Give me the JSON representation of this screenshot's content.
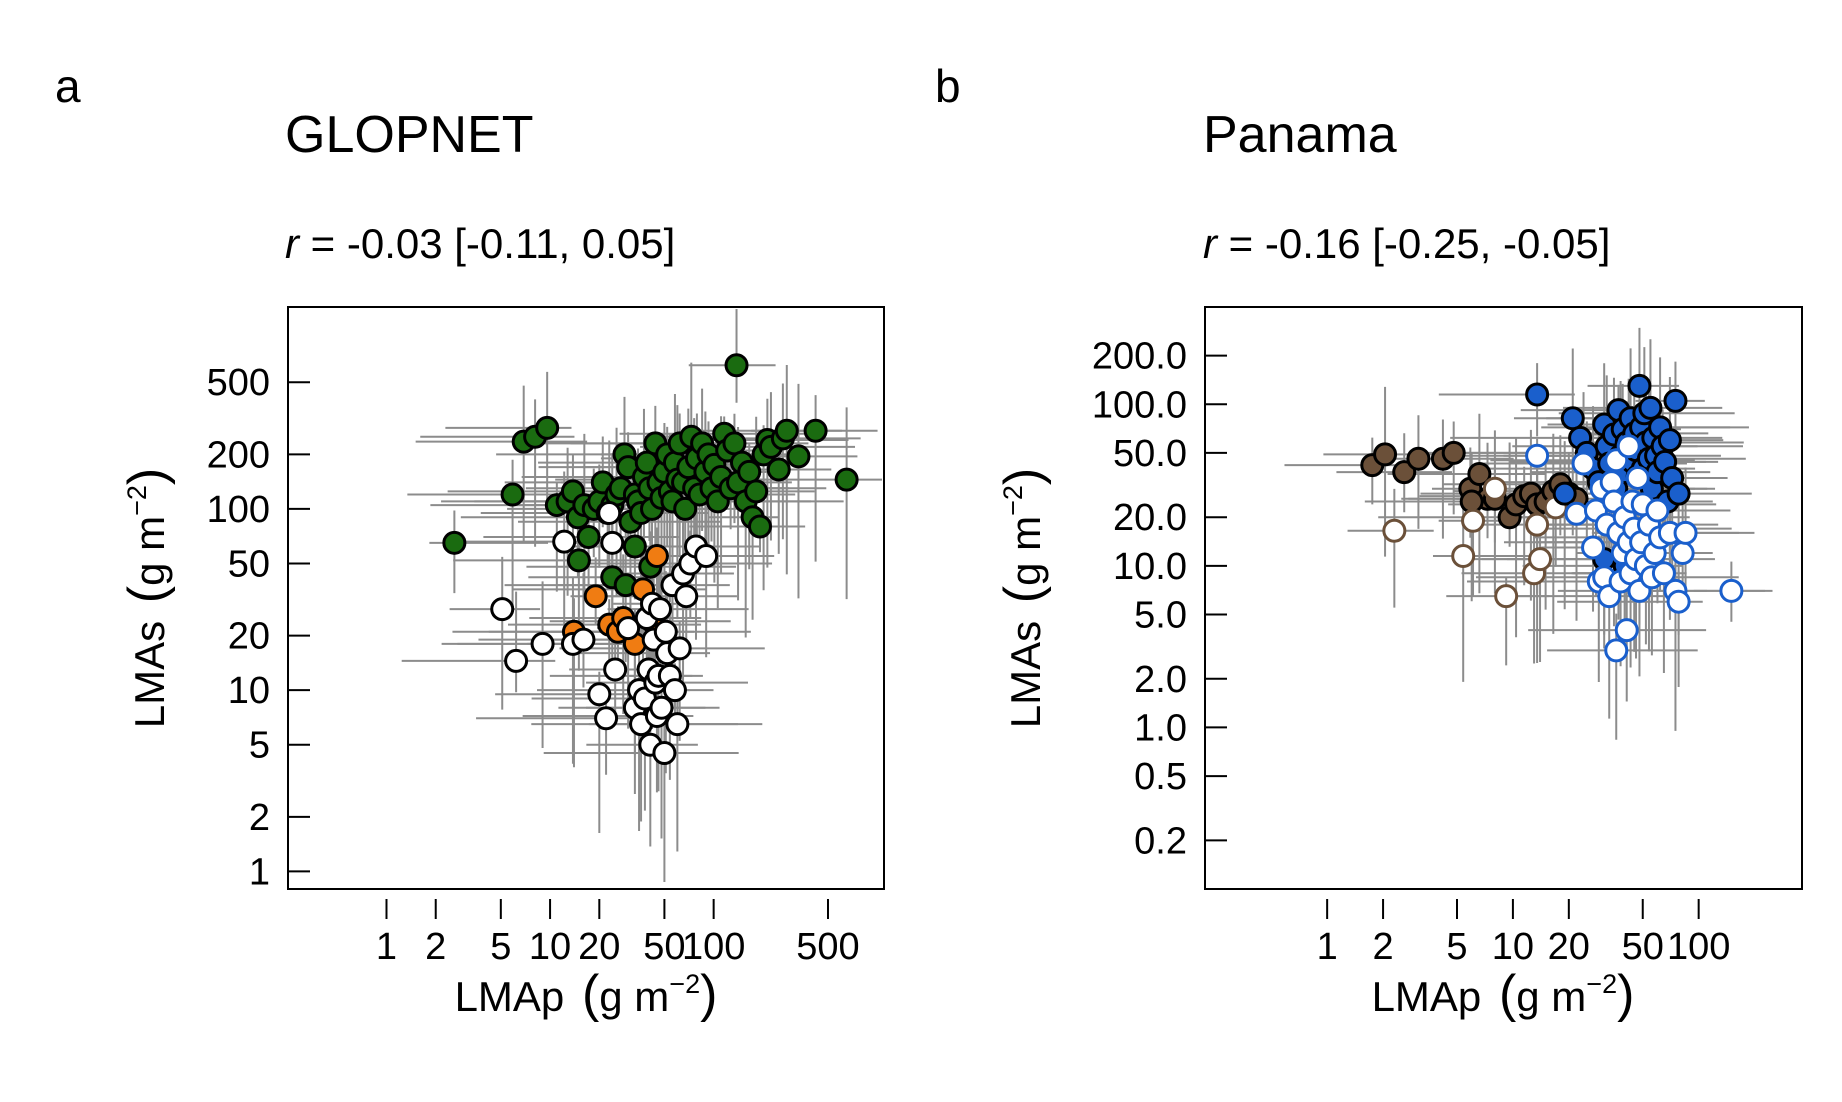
{
  "chart_data": [
    {
      "type": "scatter",
      "panel_label": "a",
      "title": "GLOPNET",
      "subtitle_r": "r",
      "subtitle_rest": " = -0.03 [-0.11, 0.05]",
      "xlabel_main": "LMAp",
      "xlabel_unit": "g m",
      "xlabel_exp": "−2",
      "ylabel_main": "LMAs",
      "ylabel_unit": "g m",
      "ylabel_exp": "−2",
      "x_scale": "log",
      "y_scale": "log",
      "xlim": [
        0.25,
        1100
      ],
      "ylim": [
        0.8,
        1300
      ],
      "x_ticks": [
        1,
        2,
        5,
        10,
        20,
        50,
        100,
        500
      ],
      "x_tick_labels": [
        "1",
        "2",
        "5",
        "10",
        "20",
        "50",
        "100",
        "500"
      ],
      "y_ticks": [
        1,
        2,
        5,
        10,
        20,
        50,
        100,
        200,
        500
      ],
      "y_tick_labels": [
        "1",
        "2",
        "5",
        "10",
        "20",
        "50",
        "100",
        "200",
        "500"
      ],
      "grid": false,
      "legend": "none",
      "error_bar_color": "#8c8c8c",
      "series": [
        {
          "fill": "#1a6b10",
          "stroke": "#000000",
          "points": [
            [
              2.6,
              65
            ],
            [
              5.9,
              120
            ],
            [
              6.9,
              235
            ],
            [
              8.1,
              250
            ],
            [
              9.6,
              280
            ],
            [
              11,
              105
            ],
            [
              12.8,
              110
            ],
            [
              13.8,
              125
            ],
            [
              14.8,
              90
            ],
            [
              16.2,
              105
            ],
            [
              17.2,
              70
            ],
            [
              18.5,
              100
            ],
            [
              20,
              110
            ],
            [
              21,
              140
            ],
            [
              22.5,
              95
            ],
            [
              24,
              105
            ],
            [
              25.5,
              120
            ],
            [
              27,
              130
            ],
            [
              28.5,
              200
            ],
            [
              30,
              170
            ],
            [
              31,
              85
            ],
            [
              33,
              120
            ],
            [
              34.5,
              110
            ],
            [
              36,
              95
            ],
            [
              37.5,
              150
            ],
            [
              39,
              180
            ],
            [
              40.5,
              130
            ],
            [
              42,
              100
            ],
            [
              44,
              230
            ],
            [
              46,
              140
            ],
            [
              48,
              115
            ],
            [
              50,
              160
            ],
            [
              52,
              200
            ],
            [
              54,
              125
            ],
            [
              56,
              110
            ],
            [
              58,
              180
            ],
            [
              60,
              145
            ],
            [
              62,
              230
            ],
            [
              65,
              140
            ],
            [
              67,
              100
            ],
            [
              70,
              170
            ],
            [
              73,
              250
            ],
            [
              76,
              130
            ],
            [
              79,
              190
            ],
            [
              82,
              120
            ],
            [
              85,
              230
            ],
            [
              89,
              160
            ],
            [
              93,
              200
            ],
            [
              97,
              130
            ],
            [
              101,
              175
            ],
            [
              106,
              110
            ],
            [
              111,
              150
            ],
            [
              116,
              260
            ],
            [
              121,
              210
            ],
            [
              127,
              130
            ],
            [
              134,
              230
            ],
            [
              141,
              140
            ],
            [
              149,
              180
            ],
            [
              157,
              110
            ],
            [
              165,
              160
            ],
            [
              173,
              90
            ],
            [
              182,
              125
            ],
            [
              192,
              80
            ],
            [
              202,
              200
            ],
            [
              213,
              240
            ],
            [
              224,
              220
            ],
            [
              250,
              165
            ],
            [
              265,
              245
            ],
            [
              280,
              270
            ],
            [
              330,
              195
            ],
            [
              420,
              270
            ],
            [
              650,
              145
            ],
            [
              138,
              620
            ],
            [
              15,
              52
            ],
            [
              24,
              42
            ],
            [
              29,
              38
            ],
            [
              33,
              62
            ],
            [
              41,
              48
            ]
          ]
        },
        {
          "fill": "#f07c12",
          "stroke": "#000000",
          "points": [
            [
              14,
              21
            ],
            [
              19,
              33
            ],
            [
              23,
              23
            ],
            [
              26,
              21
            ],
            [
              28,
              25
            ],
            [
              33,
              18
            ],
            [
              37,
              36
            ],
            [
              42,
              24
            ],
            [
              45,
              55
            ]
          ]
        },
        {
          "fill": "#ffffff",
          "stroke": "#000000",
          "points": [
            [
              5.1,
              28
            ],
            [
              6.2,
              14.5
            ],
            [
              9,
              18
            ],
            [
              12.2,
              66
            ],
            [
              13.8,
              18
            ],
            [
              16,
              19
            ],
            [
              20,
              9.5
            ],
            [
              22,
              7
            ],
            [
              23,
              95
            ],
            [
              24,
              65
            ],
            [
              25,
              13
            ],
            [
              30,
              22
            ],
            [
              33,
              8
            ],
            [
              35,
              10
            ],
            [
              36,
              6.5
            ],
            [
              38,
              9
            ],
            [
              39,
              25
            ],
            [
              40,
              13
            ],
            [
              41,
              5
            ],
            [
              42,
              30
            ],
            [
              43,
              19
            ],
            [
              44,
              11
            ],
            [
              45,
              7.2
            ],
            [
              46,
              12
            ],
            [
              47,
              28
            ],
            [
              48,
              8
            ],
            [
              50,
              4.5
            ],
            [
              51,
              21
            ],
            [
              52,
              16
            ],
            [
              54,
              12
            ],
            [
              56,
              38
            ],
            [
              58,
              10
            ],
            [
              60,
              6.5
            ],
            [
              62,
              17
            ],
            [
              65,
              44
            ],
            [
              68,
              33
            ],
            [
              72,
              50
            ],
            [
              78,
              62
            ],
            [
              90,
              55
            ]
          ]
        }
      ]
    },
    {
      "type": "scatter",
      "panel_label": "b",
      "title": "Panama",
      "subtitle_r": "r",
      "subtitle_rest": " = -0.16 [-0.25, -0.05]",
      "xlabel_main": "LMAp",
      "xlabel_unit": "g m",
      "xlabel_exp": "−2",
      "ylabel_main": "LMAs",
      "ylabel_unit": "g m",
      "ylabel_exp": "−2",
      "x_scale": "log",
      "y_scale": "log",
      "xlim": [
        0.22,
        360
      ],
      "ylim": [
        0.1,
        400
      ],
      "x_ticks": [
        1,
        2,
        5,
        10,
        20,
        50,
        100
      ],
      "x_tick_labels": [
        "1",
        "2",
        "5",
        "10",
        "20",
        "50",
        "100"
      ],
      "y_ticks": [
        0.2,
        0.5,
        1,
        2,
        5,
        10,
        20,
        50,
        100,
        200
      ],
      "y_tick_labels": [
        "0.2",
        "0.5",
        "1.0",
        "2.0",
        "5.0",
        "10.0",
        "20.0",
        "50.0",
        "100.0",
        "200.0"
      ],
      "grid": false,
      "legend": "none",
      "error_bar_color": "#8c8c8c",
      "series": [
        {
          "fill": "#6b5039",
          "stroke": "#000000",
          "points": [
            [
              1.75,
              42
            ],
            [
              2.05,
              49
            ],
            [
              2.6,
              38
            ],
            [
              3.1,
              46
            ],
            [
              4.2,
              46
            ],
            [
              4.8,
              50
            ],
            [
              5.9,
              30
            ],
            [
              6.6,
              37
            ],
            [
              7.3,
              26
            ],
            [
              8,
              26
            ],
            [
              9.6,
              20
            ],
            [
              10.4,
              24
            ],
            [
              11.5,
              27
            ],
            [
              12.5,
              28
            ],
            [
              13.5,
              24
            ],
            [
              15,
              25
            ],
            [
              16.5,
              29
            ],
            [
              18,
              32
            ],
            [
              20,
              28
            ],
            [
              22,
              26
            ],
            [
              6.0,
              25
            ]
          ]
        },
        {
          "fill": "#ffffff",
          "stroke": "#6b5039",
          "points": [
            [
              2.3,
              16.5
            ],
            [
              5.4,
              11.5
            ],
            [
              6.1,
              19
            ],
            [
              9.2,
              6.5
            ],
            [
              13,
              9
            ],
            [
              13.5,
              18
            ],
            [
              14,
              11
            ],
            [
              17,
              23
            ],
            [
              8,
              30
            ]
          ]
        },
        {
          "fill": "#1a5fcc",
          "stroke": "#000000",
          "points": [
            [
              13.5,
              115
            ],
            [
              19,
              28
            ],
            [
              21,
              82
            ],
            [
              23,
              62
            ],
            [
              25,
              50
            ],
            [
              27,
              40
            ],
            [
              29,
              33
            ],
            [
              31,
              75
            ],
            [
              32,
              55
            ],
            [
              33,
              43
            ],
            [
              35,
              65
            ],
            [
              36,
              30
            ],
            [
              37,
              92
            ],
            [
              38,
              48
            ],
            [
              39,
              70
            ],
            [
              40,
              38
            ],
            [
              41,
              58
            ],
            [
              43,
              82
            ],
            [
              44,
              44
            ],
            [
              45,
              66
            ],
            [
              46,
              52
            ],
            [
              47,
              36
            ],
            [
              48,
              130
            ],
            [
              49,
              72
            ],
            [
              50,
              40
            ],
            [
              51,
              88
            ],
            [
              52,
              58
            ],
            [
              54,
              46
            ],
            [
              55,
              95
            ],
            [
              56,
              30
            ],
            [
              57,
              62
            ],
            [
              59,
              48
            ],
            [
              60,
              38
            ],
            [
              62,
              72
            ],
            [
              64,
              55
            ],
            [
              66,
              44
            ],
            [
              68,
              25
            ],
            [
              70,
              60
            ],
            [
              72,
              35
            ],
            [
              75,
              105
            ],
            [
              78,
              28
            ],
            [
              31,
              11
            ],
            [
              40,
              10
            ],
            [
              48,
              9
            ]
          ]
        },
        {
          "fill": "#ffffff",
          "stroke": "#1a5fcc",
          "points": [
            [
              13.5,
              48
            ],
            [
              22,
              21
            ],
            [
              24,
              43
            ],
            [
              27,
              13
            ],
            [
              28,
              22
            ],
            [
              29,
              8
            ],
            [
              30,
              30
            ],
            [
              31,
              8.5
            ],
            [
              32,
              18
            ],
            [
              33,
              6.5
            ],
            [
              34,
              33
            ],
            [
              35,
              25
            ],
            [
              36,
              3
            ],
            [
              37,
              16
            ],
            [
              38,
              8
            ],
            [
              39,
              12
            ],
            [
              40,
              20
            ],
            [
              41,
              4
            ],
            [
              42,
              14
            ],
            [
              43,
              9
            ],
            [
              44,
              25
            ],
            [
              45,
              17
            ],
            [
              46,
              11
            ],
            [
              47,
              35
            ],
            [
              48,
              7
            ],
            [
              49,
              14
            ],
            [
              50,
              24
            ],
            [
              52,
              10
            ],
            [
              54,
              18
            ],
            [
              56,
              8.5
            ],
            [
              58,
              12
            ],
            [
              60,
              22
            ],
            [
              62,
              15
            ],
            [
              65,
              9
            ],
            [
              70,
              16
            ],
            [
              75,
              7
            ],
            [
              78,
              6
            ],
            [
              82,
              12
            ],
            [
              85,
              16
            ],
            [
              150,
              7
            ],
            [
              36,
              45
            ],
            [
              42,
              55
            ]
          ]
        }
      ]
    }
  ]
}
